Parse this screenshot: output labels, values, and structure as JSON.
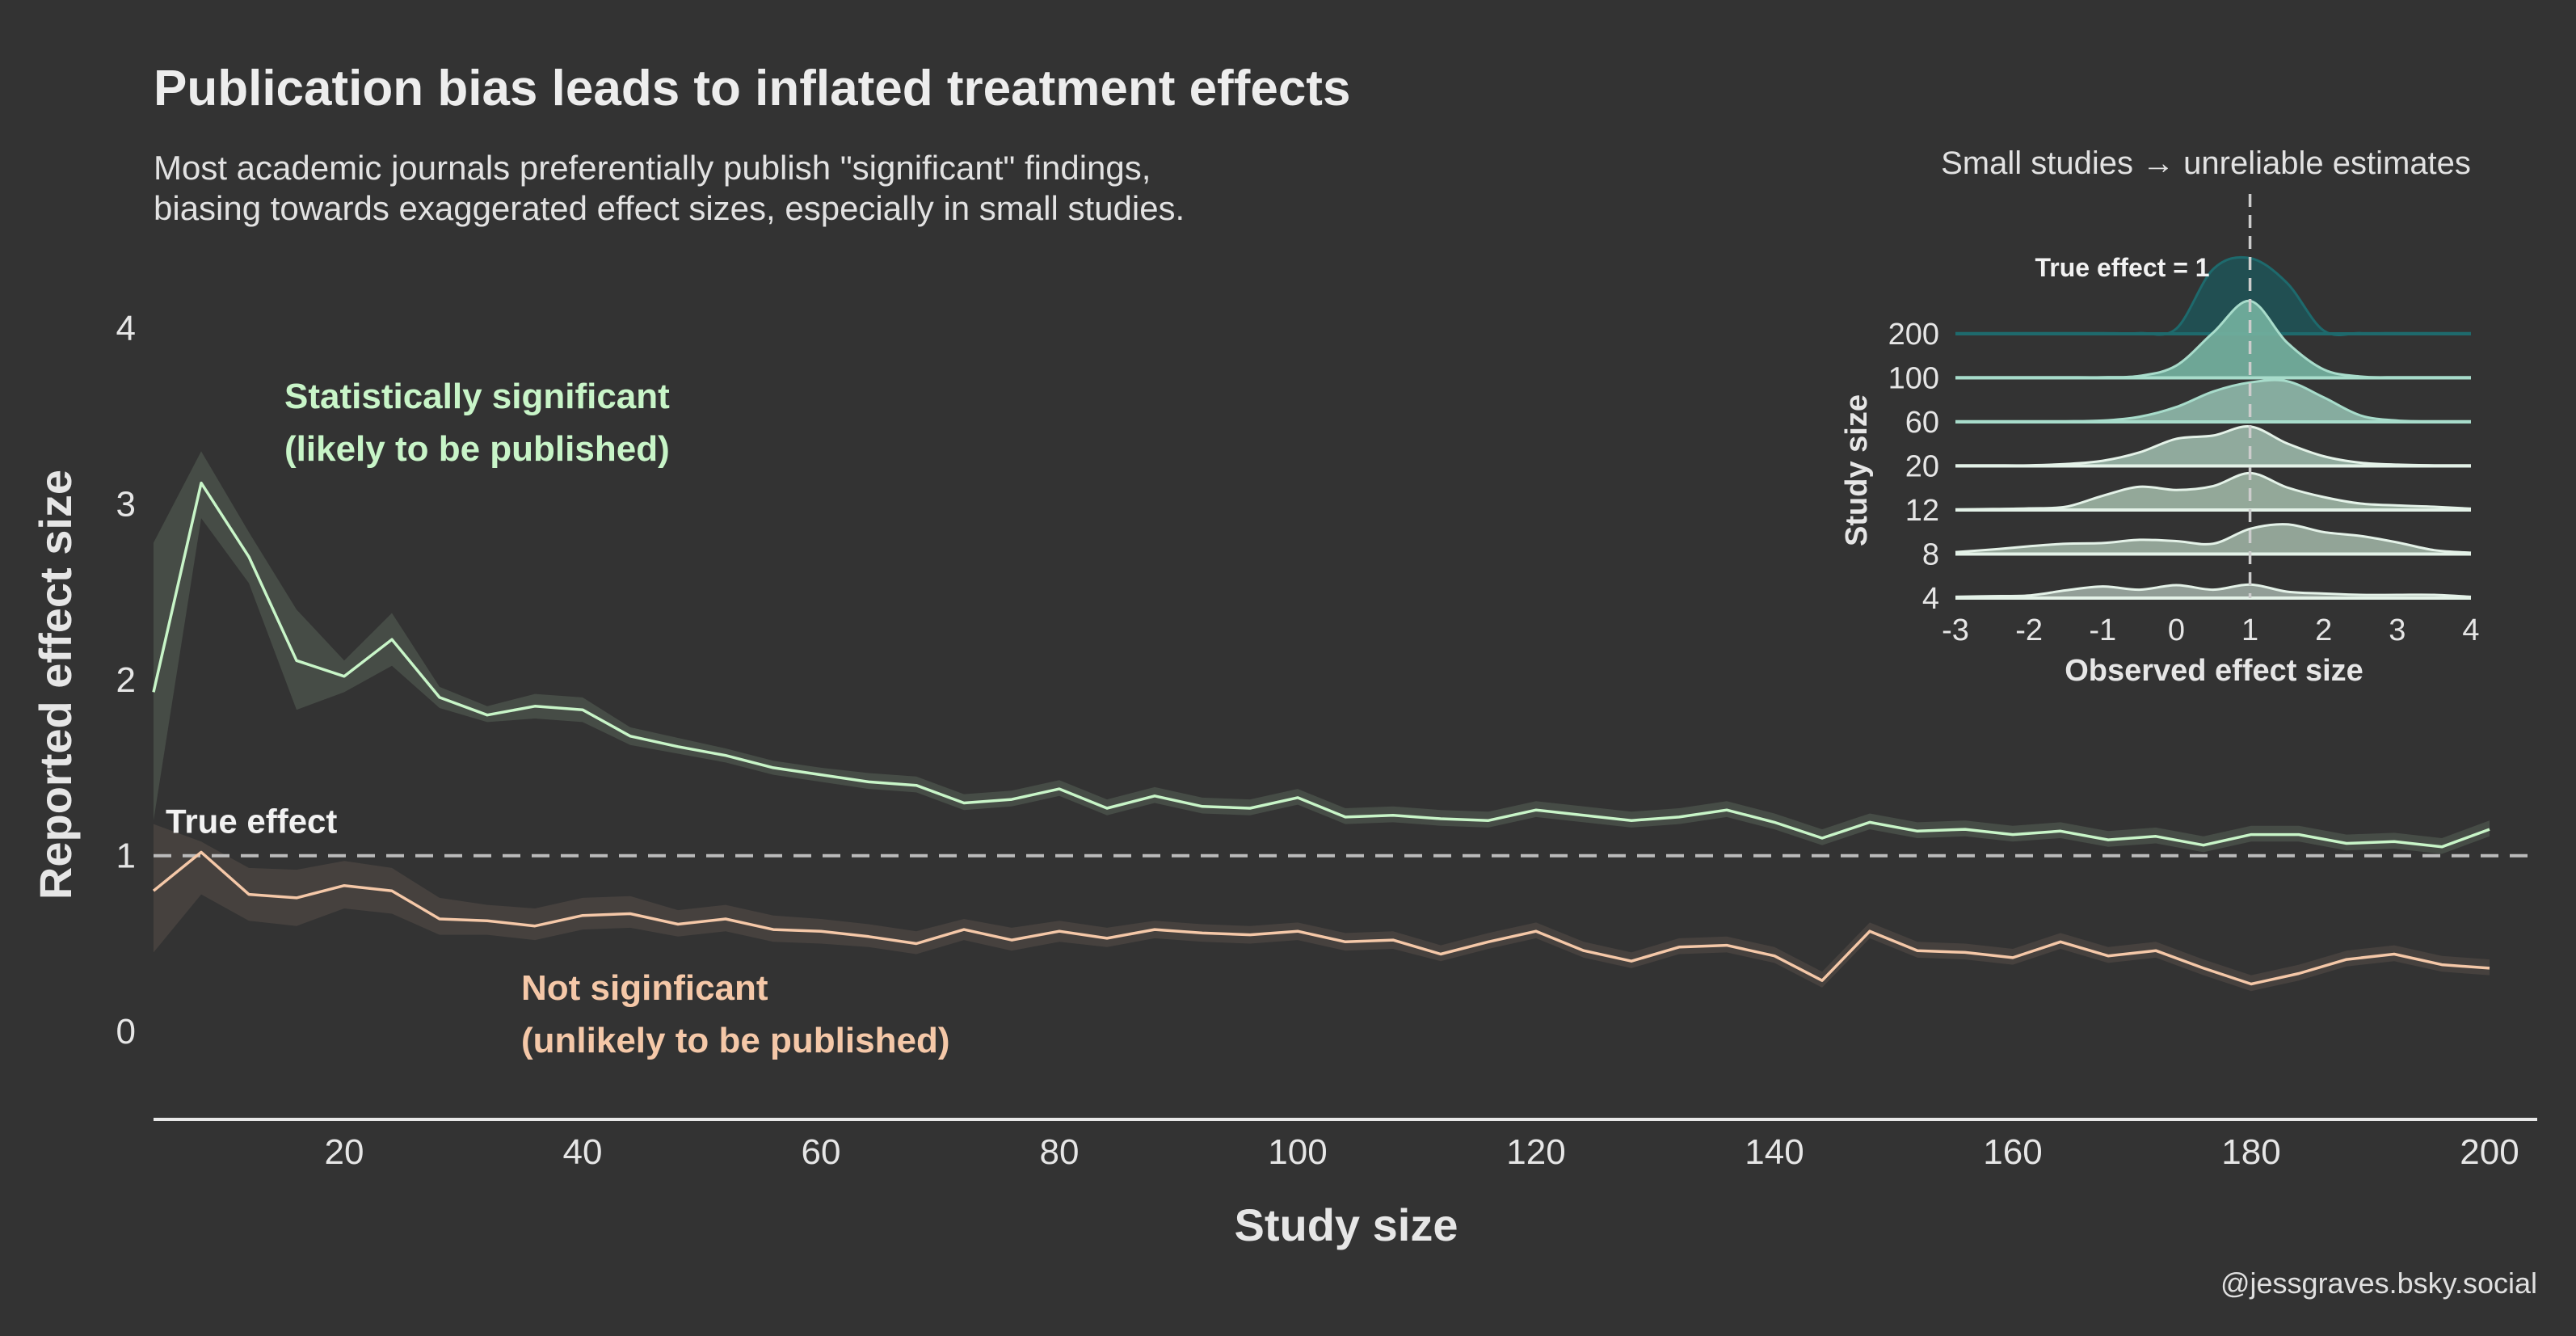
{
  "title": "Publication bias leads to inflated treatment effects",
  "subtitle_lines": [
    "Most academic journals preferentially publish \"significant\" findings,",
    "biasing towards exaggerated effect sizes, especially in small studies."
  ],
  "credit": "@jessgraves.bsky.social",
  "colors": {
    "background": "#333333",
    "significant": "#C8F5C8",
    "not_significant": "#F5C8A8",
    "axis_text": "#E8E8E8",
    "reference_line": "#BBBBBB"
  },
  "chart_data": [
    {
      "type": "line",
      "xlabel": "Study size",
      "ylabel": "Reported effect size",
      "xlim": [
        4,
        204
      ],
      "ylim": [
        -0.5,
        4.35
      ],
      "x_ticks": [
        20,
        40,
        60,
        80,
        100,
        120,
        140,
        160,
        180,
        200
      ],
      "y_ticks": [
        0,
        1,
        2,
        3,
        4
      ],
      "reference_line": {
        "y": 1,
        "label": "True effect"
      },
      "x": [
        4,
        8,
        12,
        16,
        20,
        24,
        28,
        32,
        36,
        40,
        44,
        48,
        52,
        56,
        60,
        64,
        68,
        72,
        76,
        80,
        84,
        88,
        92,
        96,
        100,
        104,
        108,
        112,
        116,
        120,
        124,
        128,
        132,
        136,
        140,
        144,
        148,
        152,
        156,
        160,
        164,
        168,
        172,
        176,
        180,
        184,
        188,
        192,
        196,
        200
      ],
      "series": [
        {
          "name": "significant",
          "labels": [
            "Statistically significant",
            "(likely to be published)"
          ],
          "color": "#C8F5C8",
          "values": [
            1.93,
            3.12,
            2.7,
            2.11,
            2.02,
            2.23,
            1.9,
            1.8,
            1.85,
            1.83,
            1.68,
            1.62,
            1.57,
            1.5,
            1.46,
            1.42,
            1.4,
            1.3,
            1.32,
            1.38,
            1.27,
            1.34,
            1.28,
            1.27,
            1.33,
            1.22,
            1.23,
            1.21,
            1.2,
            1.26,
            1.23,
            1.2,
            1.22,
            1.26,
            1.19,
            1.1,
            1.19,
            1.14,
            1.15,
            1.12,
            1.14,
            1.09,
            1.11,
            1.06,
            1.12,
            1.12,
            1.07,
            1.08,
            1.05,
            1.15
          ],
          "lower": [
            1.2,
            2.92,
            2.55,
            1.83,
            1.93,
            2.08,
            1.84,
            1.76,
            1.78,
            1.76,
            1.63,
            1.58,
            1.53,
            1.46,
            1.42,
            1.38,
            1.36,
            1.26,
            1.28,
            1.34,
            1.23,
            1.3,
            1.24,
            1.23,
            1.29,
            1.18,
            1.19,
            1.17,
            1.16,
            1.22,
            1.19,
            1.16,
            1.18,
            1.22,
            1.15,
            1.06,
            1.15,
            1.1,
            1.11,
            1.08,
            1.1,
            1.05,
            1.07,
            1.02,
            1.08,
            1.08,
            1.03,
            1.04,
            1.01,
            1.11
          ],
          "upper": [
            2.78,
            3.3,
            2.84,
            2.4,
            2.11,
            2.38,
            1.96,
            1.85,
            1.92,
            1.9,
            1.73,
            1.67,
            1.61,
            1.54,
            1.5,
            1.47,
            1.45,
            1.35,
            1.37,
            1.43,
            1.32,
            1.39,
            1.33,
            1.32,
            1.38,
            1.27,
            1.28,
            1.26,
            1.25,
            1.31,
            1.28,
            1.25,
            1.27,
            1.31,
            1.24,
            1.15,
            1.24,
            1.19,
            1.2,
            1.17,
            1.19,
            1.14,
            1.16,
            1.11,
            1.17,
            1.17,
            1.12,
            1.13,
            1.1,
            1.2
          ]
        },
        {
          "name": "not_significant",
          "labels": [
            "Not siginficant",
            "(unlikely to be published)"
          ],
          "color": "#F5C8A8",
          "values": [
            0.8,
            1.02,
            0.78,
            0.76,
            0.83,
            0.8,
            0.64,
            0.63,
            0.6,
            0.66,
            0.67,
            0.61,
            0.64,
            0.58,
            0.57,
            0.54,
            0.5,
            0.58,
            0.52,
            0.57,
            0.53,
            0.58,
            0.56,
            0.55,
            0.57,
            0.51,
            0.52,
            0.44,
            0.51,
            0.57,
            0.46,
            0.4,
            0.48,
            0.49,
            0.43,
            0.29,
            0.57,
            0.46,
            0.45,
            0.42,
            0.51,
            0.43,
            0.46,
            0.36,
            0.27,
            0.33,
            0.41,
            0.44,
            0.38,
            0.36
          ],
          "lower": [
            0.45,
            0.78,
            0.63,
            0.6,
            0.7,
            0.67,
            0.55,
            0.55,
            0.52,
            0.58,
            0.59,
            0.54,
            0.57,
            0.51,
            0.5,
            0.48,
            0.44,
            0.52,
            0.46,
            0.51,
            0.48,
            0.53,
            0.51,
            0.5,
            0.52,
            0.46,
            0.47,
            0.4,
            0.47,
            0.53,
            0.42,
            0.36,
            0.44,
            0.45,
            0.39,
            0.25,
            0.53,
            0.42,
            0.41,
            0.38,
            0.47,
            0.39,
            0.42,
            0.32,
            0.23,
            0.29,
            0.37,
            0.4,
            0.34,
            0.32
          ],
          "upper": [
            1.18,
            1.08,
            0.93,
            0.92,
            0.97,
            0.93,
            0.76,
            0.72,
            0.7,
            0.76,
            0.77,
            0.69,
            0.72,
            0.66,
            0.64,
            0.61,
            0.57,
            0.64,
            0.59,
            0.63,
            0.59,
            0.63,
            0.61,
            0.6,
            0.62,
            0.56,
            0.57,
            0.49,
            0.56,
            0.62,
            0.51,
            0.45,
            0.53,
            0.54,
            0.48,
            0.34,
            0.62,
            0.51,
            0.5,
            0.47,
            0.56,
            0.48,
            0.51,
            0.41,
            0.32,
            0.38,
            0.46,
            0.49,
            0.43,
            0.41
          ]
        }
      ]
    },
    {
      "type": "area",
      "title": "Small studies → unreliable estimates",
      "xlabel": "Observed effect size",
      "ylabel": "Study size",
      "xlim": [
        -3,
        4
      ],
      "x_ticks": [
        -3,
        -2,
        -1,
        0,
        1,
        2,
        3,
        4
      ],
      "reference_line": {
        "x": 1,
        "label": "True effect = 1"
      },
      "x": [
        -3,
        -2.5,
        -2,
        -1.5,
        -1,
        -0.5,
        0,
        0.5,
        1,
        1.5,
        2,
        2.5,
        3,
        3.5,
        4
      ],
      "ridges": [
        {
          "label": "4",
          "color": "#9AA79F",
          "density": [
            0.04,
            0.06,
            0.08,
            0.24,
            0.36,
            0.26,
            0.4,
            0.26,
            0.42,
            0.2,
            0.14,
            0.1,
            0.1,
            0.1,
            0.04
          ]
        },
        {
          "label": "8",
          "color": "#9AAE9F",
          "density": [
            0.06,
            0.14,
            0.24,
            0.32,
            0.34,
            0.44,
            0.4,
            0.32,
            0.78,
            0.92,
            0.68,
            0.56,
            0.36,
            0.12,
            0.04
          ]
        },
        {
          "label": "12",
          "color": "#9BB2A2",
          "density": [
            0.02,
            0.03,
            0.05,
            0.1,
            0.44,
            0.72,
            0.62,
            0.74,
            1.14,
            0.7,
            0.4,
            0.2,
            0.14,
            0.1,
            0.04
          ]
        },
        {
          "label": "20",
          "color": "#98B4A6",
          "density": [
            0.02,
            0.02,
            0.02,
            0.06,
            0.16,
            0.42,
            0.84,
            0.94,
            1.22,
            0.7,
            0.3,
            0.1,
            0.04,
            0.02,
            0.02
          ]
        },
        {
          "label": "60",
          "color": "#8DB6A8",
          "density": [
            0.02,
            0.02,
            0.02,
            0.02,
            0.04,
            0.16,
            0.46,
            0.94,
            1.22,
            1.26,
            0.76,
            0.2,
            0.04,
            0.02,
            0.02
          ]
        },
        {
          "label": "100",
          "color": "#73B09E",
          "density": [
            0.02,
            0.02,
            0.02,
            0.02,
            0.02,
            0.06,
            0.38,
            1.4,
            2.38,
            1.1,
            0.26,
            0.04,
            0.02,
            0.02,
            0.02
          ]
        },
        {
          "label": "200",
          "color": "#1E5558",
          "density": [
            0.02,
            0.02,
            0.02,
            0.02,
            0.02,
            0.02,
            0.16,
            2.0,
            2.34,
            1.58,
            0.1,
            0.02,
            0.02,
            0.02,
            0.02
          ]
        }
      ]
    }
  ]
}
